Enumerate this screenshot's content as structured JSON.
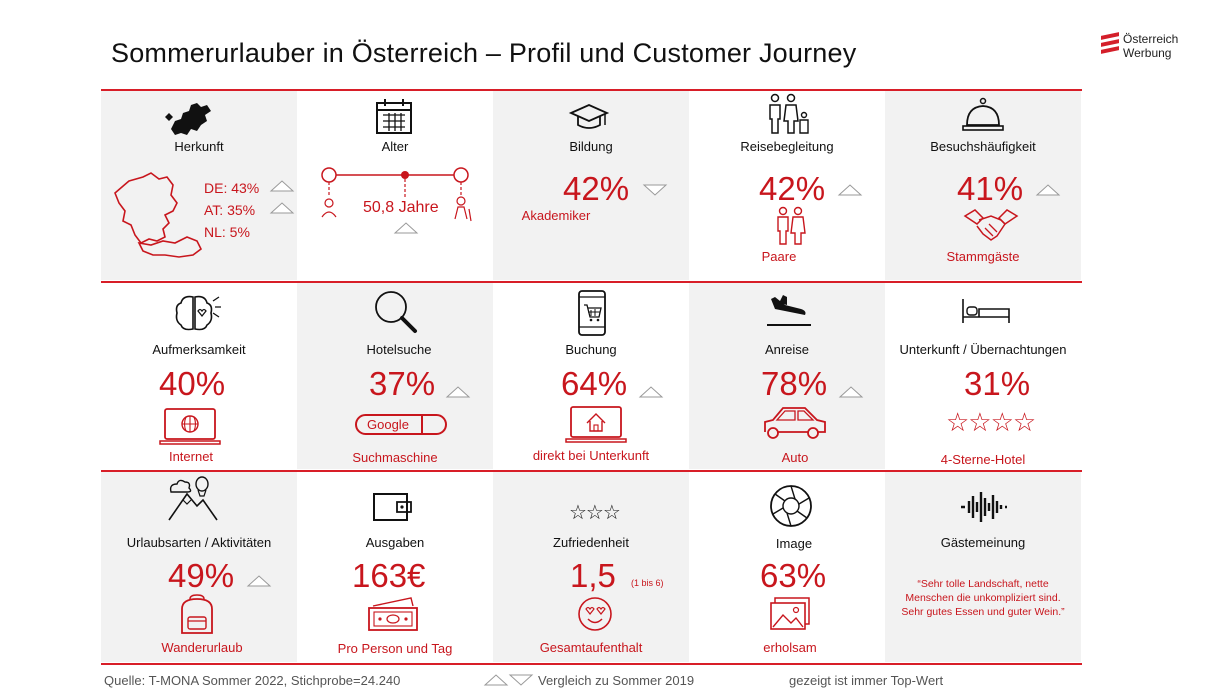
{
  "title": "Sommerurlauber in Österreich – Profil und Customer Journey",
  "logo": {
    "line1": "Österreich",
    "line2": "Werbung"
  },
  "row1": {
    "herkunft": {
      "label": "Herkunft",
      "de": "DE: 43%",
      "at": "AT:  35%",
      "nl": "NL: 5%"
    },
    "alter": {
      "label": "Alter",
      "value": "50,8 Jahre"
    },
    "bildung": {
      "label": "Bildung",
      "value": "42%",
      "sub": "Akademiker"
    },
    "reise": {
      "label": "Reisebegleitung",
      "value": "42%",
      "sub": "Paare"
    },
    "besuch": {
      "label": "Besuchshäufigkeit",
      "value": "41%",
      "sub": "Stammgäste"
    }
  },
  "row2": {
    "aufm": {
      "label": "Aufmerksamkeit",
      "value": "40%",
      "sub": "Internet"
    },
    "hotel": {
      "label": "Hotelsuche",
      "value": "37%",
      "google": "Google",
      "sub": "Suchmaschine"
    },
    "buchung": {
      "label": "Buchung",
      "value": "64%",
      "sub": "direkt bei Unterkunft"
    },
    "anreise": {
      "label": "Anreise",
      "value": "78%",
      "sub": "Auto"
    },
    "unterkunft": {
      "label": "Unterkunft / Übernachtungen",
      "value": "31%",
      "stars": "☆☆☆☆",
      "sub": "4-Sterne-Hotel"
    }
  },
  "row3": {
    "urlaub": {
      "label": "Urlaubsarten / Aktivitäten",
      "value": "49%",
      "sub": "Wanderurlaub"
    },
    "ausgaben": {
      "label": "Ausgaben",
      "value": "163€",
      "sub": "Pro Person und Tag"
    },
    "zufr": {
      "label": "Zufriedenheit",
      "stars": "☆☆☆",
      "value": "1,5",
      "scale": "(1 bis 6)",
      "sub": "Gesamtaufenthalt"
    },
    "image": {
      "label": "Image",
      "value": "63%",
      "sub": "erholsam"
    },
    "gaeste": {
      "label": "Gästemeinung",
      "quote1": "“Sehr tolle Landschaft, nette",
      "quote2": "Menschen die unkompliziert sind.",
      "quote3": "Sehr gutes Essen und guter Wein.”"
    }
  },
  "footer": {
    "source": "Quelle: T-MONA Sommer 2022, Stichprobe=24.240",
    "compare": "Vergleich zu Sommer 2019",
    "note": "gezeigt ist immer Top-Wert"
  },
  "colors": {
    "accent": "#c8161d",
    "line": "#d81e28",
    "shade": "#f2f2f2"
  }
}
